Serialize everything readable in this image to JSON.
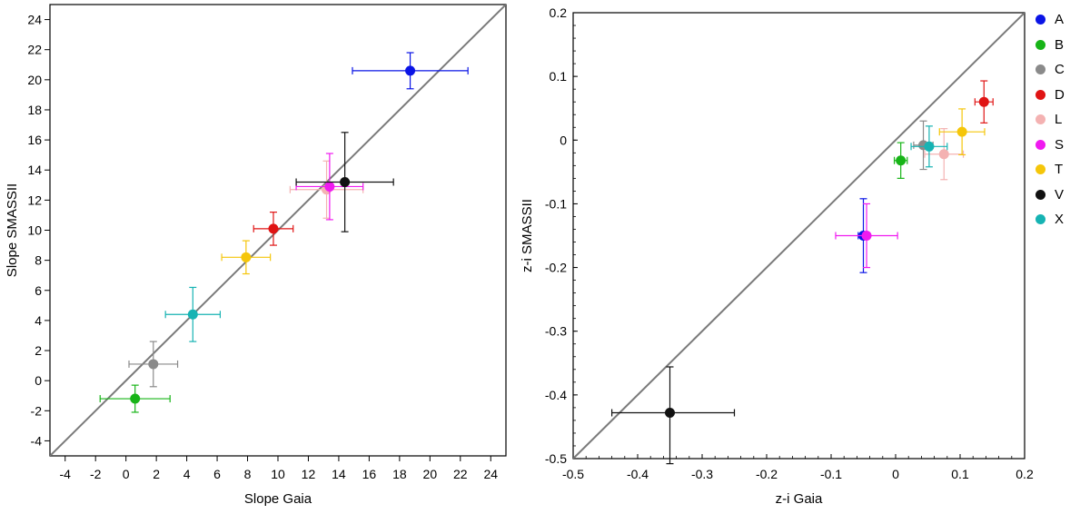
{
  "chart_data": [
    {
      "type": "scatter",
      "title": "",
      "xlabel": "Slope Gaia",
      "ylabel": "Slope SMASSII",
      "xlim": [
        -5,
        25
      ],
      "ylim": [
        -5,
        25
      ],
      "xticks": [
        -4,
        -2,
        0,
        2,
        4,
        6,
        8,
        10,
        12,
        14,
        16,
        18,
        20,
        22,
        24
      ],
      "yticks": [
        -4,
        -2,
        0,
        2,
        4,
        6,
        8,
        10,
        12,
        14,
        16,
        18,
        20,
        22,
        24
      ],
      "xtick_labels": [
        "-4",
        "-2",
        "0",
        "2",
        "4",
        "6",
        "8",
        "10",
        "12",
        "14",
        "16",
        "18",
        "20",
        "22",
        "24"
      ],
      "ytick_labels": [
        "-4",
        "-2",
        "0",
        "2",
        "4",
        "6",
        "8",
        "10",
        "12",
        "14",
        "16",
        "18",
        "20",
        "22",
        "24"
      ],
      "reference_line": "y = x",
      "grid": false,
      "points": [
        {
          "class": "A",
          "x": 18.7,
          "y": 20.6,
          "x_err": [
            3.8,
            3.8
          ],
          "y_err": [
            1.2,
            1.2
          ]
        },
        {
          "class": "B",
          "x": 0.6,
          "y": -1.2,
          "x_err": [
            2.3,
            2.3
          ],
          "y_err": [
            0.9,
            0.9
          ]
        },
        {
          "class": "C",
          "x": 1.8,
          "y": 1.1,
          "x_err": [
            1.6,
            1.6
          ],
          "y_err": [
            1.5,
            1.5
          ]
        },
        {
          "class": "D",
          "x": 9.7,
          "y": 10.1,
          "x_err": [
            1.3,
            1.3
          ],
          "y_err": [
            1.1,
            1.1
          ]
        },
        {
          "class": "L",
          "x": 13.2,
          "y": 12.7,
          "x_err": [
            2.4,
            2.4
          ],
          "y_err": [
            1.9,
            1.9
          ]
        },
        {
          "class": "S",
          "x": 13.4,
          "y": 12.9,
          "x_err": [
            2.2,
            2.2
          ],
          "y_err": [
            2.2,
            2.2
          ]
        },
        {
          "class": "T",
          "x": 7.9,
          "y": 8.2,
          "x_err": [
            1.6,
            1.6
          ],
          "y_err": [
            1.1,
            1.1
          ]
        },
        {
          "class": "V",
          "x": 14.4,
          "y": 13.2,
          "x_err": [
            3.2,
            3.2
          ],
          "y_err": [
            3.3,
            3.3
          ]
        },
        {
          "class": "X",
          "x": 4.4,
          "y": 4.4,
          "x_err": [
            1.8,
            1.8
          ],
          "y_err": [
            1.8,
            1.8
          ]
        }
      ]
    },
    {
      "type": "scatter",
      "title": "",
      "xlabel": "z-i Gaia",
      "ylabel": "z-i SMASSII",
      "xlim": [
        -0.5,
        0.2
      ],
      "ylim": [
        -0.5,
        0.2
      ],
      "xticks": [
        -0.5,
        -0.4,
        -0.3,
        -0.2,
        -0.1,
        0,
        0.1,
        0.2
      ],
      "yticks": [
        -0.5,
        -0.4,
        -0.3,
        -0.2,
        -0.1,
        0,
        0.1,
        0.2
      ],
      "xtick_labels": [
        "-0.5",
        "-0.4",
        "-0.3",
        "-0.2",
        "-0.1",
        "0",
        "0.1",
        "0.2"
      ],
      "ytick_labels": [
        "-0.5",
        "-0.4",
        "-0.3",
        "-0.2",
        "-0.1",
        "0",
        "0.1",
        "0.2"
      ],
      "reference_line": "y = x",
      "grid": false,
      "points": [
        {
          "class": "A",
          "x": -0.05,
          "y": -0.15,
          "x_err": [
            0.008,
            0.008
          ],
          "y_err": [
            0.058,
            0.058
          ]
        },
        {
          "class": "B",
          "x": 0.008,
          "y": -0.032,
          "x_err": [
            0.01,
            0.01
          ],
          "y_err": [
            0.028,
            0.028
          ]
        },
        {
          "class": "C",
          "x": 0.043,
          "y": -0.008,
          "x_err": [
            0.015,
            0.015
          ],
          "y_err": [
            0.038,
            0.038
          ]
        },
        {
          "class": "D",
          "x": 0.137,
          "y": 0.06,
          "x_err": [
            0.014,
            0.014
          ],
          "y_err": [
            0.033,
            0.033
          ]
        },
        {
          "class": "L",
          "x": 0.075,
          "y": -0.022,
          "x_err": [
            0.03,
            0.03
          ],
          "y_err": [
            0.04,
            0.04
          ]
        },
        {
          "class": "S",
          "x": -0.045,
          "y": -0.15,
          "x_err": [
            0.048,
            0.048
          ],
          "y_err": [
            0.05,
            0.05
          ]
        },
        {
          "class": "T",
          "x": 0.103,
          "y": 0.013,
          "x_err": [
            0.035,
            0.035
          ],
          "y_err": [
            0.036,
            0.036
          ]
        },
        {
          "class": "V",
          "x": -0.35,
          "y": -0.428,
          "x_err": [
            0.09,
            0.1
          ],
          "y_err": [
            0.08,
            0.072
          ]
        },
        {
          "class": "X",
          "x": 0.052,
          "y": -0.01,
          "x_err": [
            0.028,
            0.028
          ],
          "y_err": [
            0.032,
            0.032
          ]
        }
      ]
    }
  ],
  "legend": {
    "placement": "right",
    "items": [
      {
        "label": "A",
        "color": "#0a14e6"
      },
      {
        "label": "B",
        "color": "#17b417"
      },
      {
        "label": "C",
        "color": "#8a8a8a"
      },
      {
        "label": "D",
        "color": "#e01414"
      },
      {
        "label": "L",
        "color": "#f4b2b2"
      },
      {
        "label": "S",
        "color": "#f01af0"
      },
      {
        "label": "T",
        "color": "#f5c60a"
      },
      {
        "label": "V",
        "color": "#111111"
      },
      {
        "label": "X",
        "color": "#16b3b3"
      }
    ]
  }
}
